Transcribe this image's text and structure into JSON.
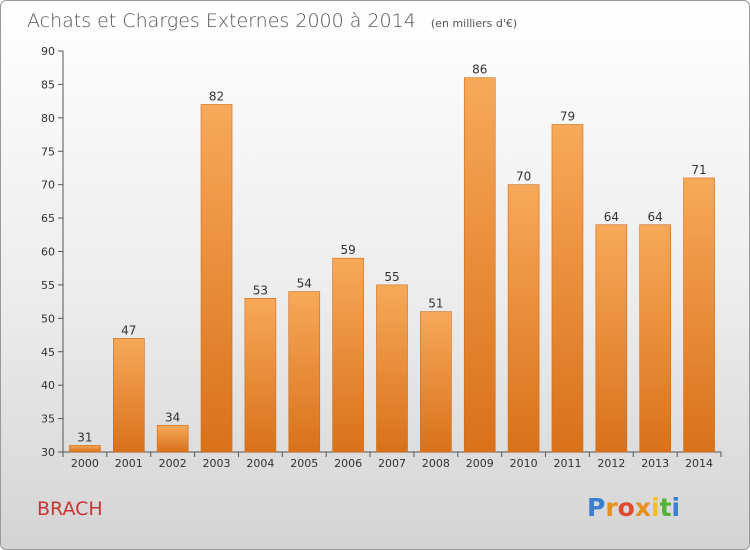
{
  "chart_data": {
    "type": "bar",
    "title": "Achats et Charges Externes 2000 à 2014",
    "unit": "(en milliers d'€)",
    "categories": [
      "2000",
      "2001",
      "2002",
      "2003",
      "2004",
      "2005",
      "2006",
      "2007",
      "2008",
      "2009",
      "2010",
      "2011",
      "2012",
      "2013",
      "2014"
    ],
    "values": [
      31,
      47,
      34,
      82,
      53,
      54,
      59,
      55,
      51,
      86,
      70,
      79,
      64,
      64,
      71
    ],
    "ylim": [
      30,
      90
    ],
    "yticks": [
      30,
      35,
      40,
      45,
      50,
      55,
      60,
      65,
      70,
      75,
      80,
      85,
      90
    ],
    "grid": false,
    "legend": "none",
    "colors": {
      "bar_top": "#f7a95a",
      "bar_bottom": "#d9711a",
      "bar_edge": "#d06a14",
      "title": "#555555",
      "commune": "#cc3333"
    }
  },
  "commune_name": "BRACH",
  "logo": {
    "letters": [
      {
        "ch": "P",
        "color": "#3b7fd1"
      },
      {
        "ch": "r",
        "color": "#e8901f"
      },
      {
        "ch": "o",
        "color": "#e24a2f"
      },
      {
        "ch": "x",
        "color": "#e8901f"
      },
      {
        "ch": "i",
        "color": "#f2c024"
      },
      {
        "ch": "t",
        "color": "#52b334"
      },
      {
        "ch": "i",
        "color": "#3b7fd1"
      }
    ]
  }
}
